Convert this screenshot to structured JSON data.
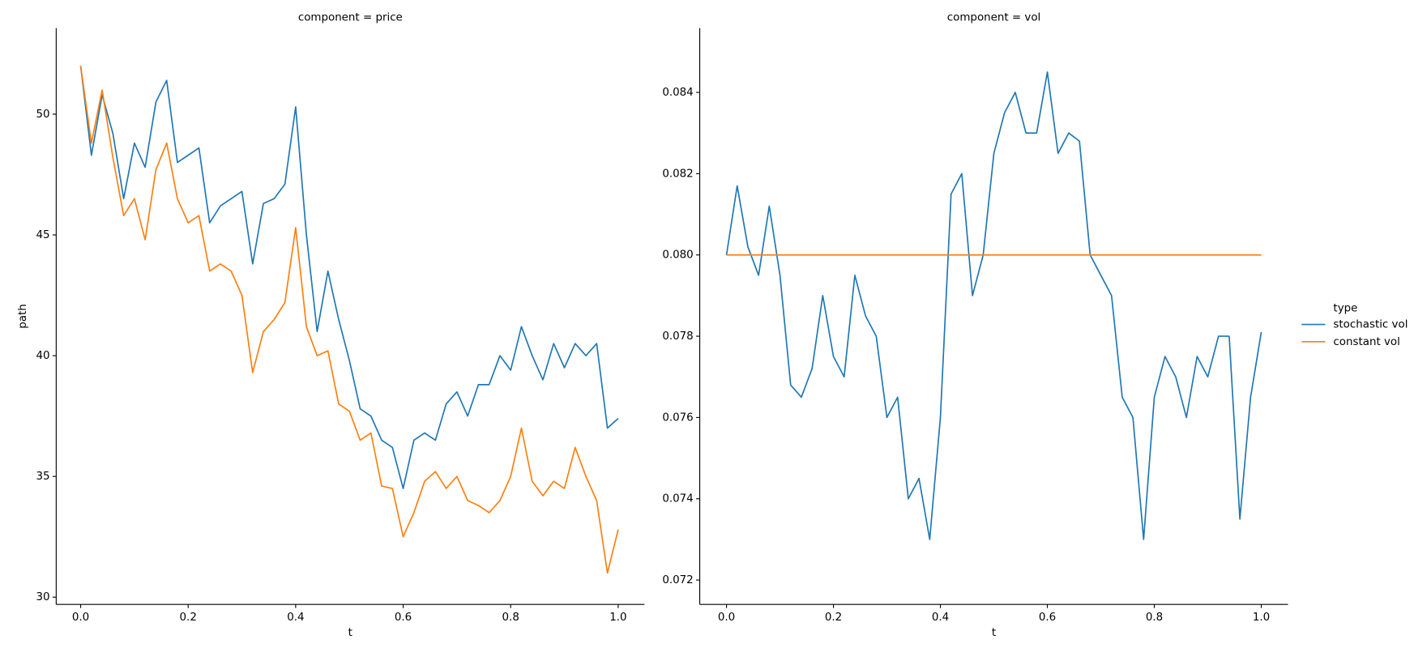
{
  "chart_data": [
    {
      "type": "line",
      "title": "component = price",
      "x_label": "t",
      "y_label": "path",
      "x": [
        0,
        0.02,
        0.04,
        0.06,
        0.08,
        0.1,
        0.12,
        0.14,
        0.16,
        0.18,
        0.2,
        0.22,
        0.24,
        0.26,
        0.28,
        0.3,
        0.32,
        0.34,
        0.36,
        0.38,
        0.4,
        0.42,
        0.44,
        0.46,
        0.48,
        0.5,
        0.52,
        0.54,
        0.56,
        0.58,
        0.6,
        0.62,
        0.64,
        0.66,
        0.68,
        0.7,
        0.72,
        0.74,
        0.76,
        0.78,
        0.8,
        0.82,
        0.84,
        0.86,
        0.88,
        0.9,
        0.92,
        0.94,
        0.96,
        0.98,
        1.0
      ],
      "series": [
        {
          "name": "stochastic vol",
          "color": "#1f77b4",
          "values": [
            52,
            48.3,
            50.8,
            49.2,
            46.5,
            48.8,
            47.8,
            50.5,
            51.4,
            48,
            48.3,
            48.6,
            45.5,
            46.2,
            46.5,
            46.8,
            43.8,
            46.3,
            46.5,
            47.1,
            50.3,
            45,
            41,
            43.5,
            41.5,
            39.8,
            37.8,
            37.5,
            36.5,
            36.2,
            34.5,
            36.5,
            36.8,
            36.5,
            38,
            38.5,
            37.5,
            38.8,
            38.8,
            40,
            39.4,
            41.2,
            40,
            39,
            40.5,
            39.5,
            40.5,
            40,
            40.5,
            37,
            37.4
          ]
        },
        {
          "name": "constant vol",
          "color": "#ff7f0e",
          "values": [
            52,
            48.8,
            51,
            48.2,
            45.8,
            46.5,
            44.8,
            47.7,
            48.8,
            46.5,
            45.5,
            45.8,
            43.5,
            43.8,
            43.5,
            42.5,
            39.3,
            41,
            41.5,
            42.2,
            45.3,
            41.2,
            40,
            40.2,
            38,
            37.7,
            36.5,
            36.8,
            34.6,
            34.5,
            32.5,
            33.5,
            34.8,
            35.2,
            34.5,
            35,
            34,
            33.8,
            33.5,
            34,
            35,
            37,
            34.8,
            34.2,
            34.8,
            34.5,
            36.2,
            35,
            34,
            31,
            32.8
          ]
        }
      ],
      "xlim": [
        -0.0455,
        1.0489
      ],
      "ylim": [
        29.7,
        53.56
      ],
      "xticks": [
        {
          "value": 0,
          "label": "0.0"
        },
        {
          "value": 0.2,
          "label": "0.2"
        },
        {
          "value": 0.4,
          "label": "0.4"
        },
        {
          "value": 0.6,
          "label": "0.6"
        },
        {
          "value": 0.8,
          "label": "0.8"
        },
        {
          "value": 1.0,
          "label": "1.0"
        }
      ],
      "yticks": [
        30,
        35,
        40,
        45,
        50
      ]
    },
    {
      "type": "line",
      "title": "component = vol",
      "x_label": "t",
      "legend_title": "type",
      "x": [
        0,
        0.02,
        0.04,
        0.06,
        0.08,
        0.1,
        0.12,
        0.14,
        0.16,
        0.18,
        0.2,
        0.22,
        0.24,
        0.26,
        0.28,
        0.3,
        0.32,
        0.34,
        0.36,
        0.38,
        0.4,
        0.42,
        0.44,
        0.46,
        0.48,
        0.5,
        0.52,
        0.54,
        0.56,
        0.58,
        0.6,
        0.62,
        0.64,
        0.66,
        0.68,
        0.7,
        0.72,
        0.74,
        0.76,
        0.78,
        0.8,
        0.82,
        0.84,
        0.86,
        0.88,
        0.9,
        0.92,
        0.94,
        0.96,
        0.98,
        1.0
      ],
      "series": [
        {
          "name": "stochastic vol",
          "color": "#1f77b4",
          "values": [
            0.08,
            0.0817,
            0.0802,
            0.0795,
            0.0812,
            0.0795,
            0.0768,
            0.0765,
            0.0772,
            0.079,
            0.0775,
            0.077,
            0.0795,
            0.0785,
            0.078,
            0.076,
            0.0765,
            0.074,
            0.0745,
            0.073,
            0.076,
            0.0815,
            0.082,
            0.079,
            0.08,
            0.0825,
            0.0835,
            0.084,
            0.083,
            0.083,
            0.0845,
            0.0825,
            0.083,
            0.0828,
            0.08,
            0.0795,
            0.079,
            0.0765,
            0.076,
            0.073,
            0.0765,
            0.0775,
            0.077,
            0.076,
            0.0775,
            0.077,
            0.078,
            0.078,
            0.0735,
            0.0765,
            0.0781
          ]
        },
        {
          "name": "constant vol",
          "color": "#ff7f0e",
          "values": [
            0.08,
            0.08,
            0.08,
            0.08,
            0.08,
            0.08,
            0.08,
            0.08,
            0.08,
            0.08,
            0.08,
            0.08,
            0.08,
            0.08,
            0.08,
            0.08,
            0.08,
            0.08,
            0.08,
            0.08,
            0.08,
            0.08,
            0.08,
            0.08,
            0.08,
            0.08,
            0.08,
            0.08,
            0.08,
            0.08,
            0.08,
            0.08,
            0.08,
            0.08,
            0.08,
            0.08,
            0.08,
            0.08,
            0.08,
            0.08,
            0.08,
            0.08,
            0.08,
            0.08,
            0.08,
            0.08,
            0.08,
            0.08,
            0.08,
            0.08,
            0.08
          ]
        }
      ],
      "xlim": [
        -0.05,
        1.05
      ],
      "ylim": [
        0.0714,
        0.08558
      ],
      "xticks": [
        {
          "value": 0,
          "label": "0.0"
        },
        {
          "value": 0.2,
          "label": "0.2"
        },
        {
          "value": 0.4,
          "label": "0.4"
        },
        {
          "value": 0.6,
          "label": "0.6"
        },
        {
          "value": 0.8,
          "label": "0.8"
        },
        {
          "value": 1.0,
          "label": "1.0"
        }
      ],
      "yticks": [
        0.072,
        0.074,
        0.076,
        {
          "value": 0.078,
          "label": "0.078"
        },
        {
          "value": 0.08,
          "label": "0.080"
        },
        0.082,
        0.084
      ]
    }
  ]
}
